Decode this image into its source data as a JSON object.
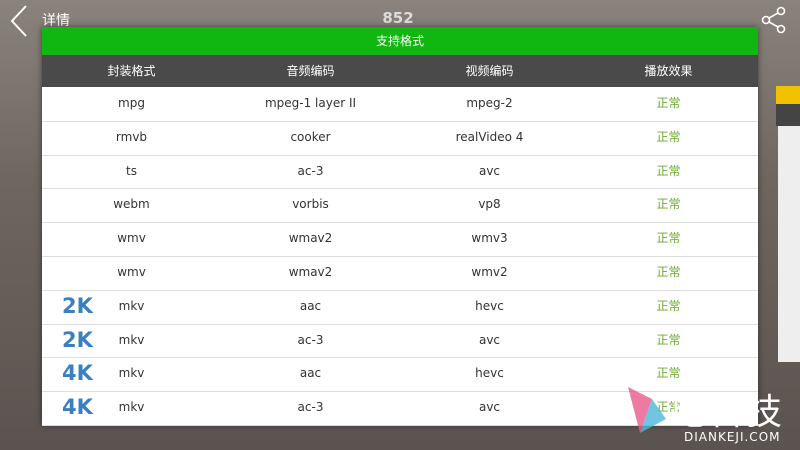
{
  "header": {
    "back_label": "详情",
    "title": "852"
  },
  "table": {
    "title": "支持格式",
    "columns": [
      "封装格式",
      "音频编码",
      "视频编码",
      "播放效果"
    ],
    "rows": [
      {
        "cells": [
          "mpg",
          "mpeg-1 layer II",
          "mpeg-2",
          "正常"
        ]
      },
      {
        "cells": [
          "rmvb",
          "cooker",
          "realVideo 4",
          "正常"
        ]
      },
      {
        "cells": [
          "ts",
          "ac-3",
          "avc",
          "正常"
        ]
      },
      {
        "cells": [
          "webm",
          "vorbis",
          "vp8",
          "正常"
        ]
      },
      {
        "cells": [
          "wmv",
          "wmav2",
          "wmv3",
          "正常"
        ]
      },
      {
        "cells": [
          "wmv",
          "wmav2",
          "wmv2",
          "正常"
        ]
      },
      {
        "badge": "2K",
        "cells": [
          "mkv",
          "aac",
          "hevc",
          "正常"
        ]
      },
      {
        "badge": "2K",
        "cells": [
          "mkv",
          "ac-3",
          "avc",
          "正常"
        ]
      },
      {
        "badge": "4K",
        "cells": [
          "mkv",
          "aac",
          "hevc",
          "正常"
        ]
      },
      {
        "badge": "4K",
        "cells": [
          "mkv",
          "ac-3",
          "avc",
          "正常"
        ]
      }
    ]
  },
  "watermark": {
    "name": "电科技",
    "domain": "DIANKEJI.COM",
    "mark": "®"
  }
}
